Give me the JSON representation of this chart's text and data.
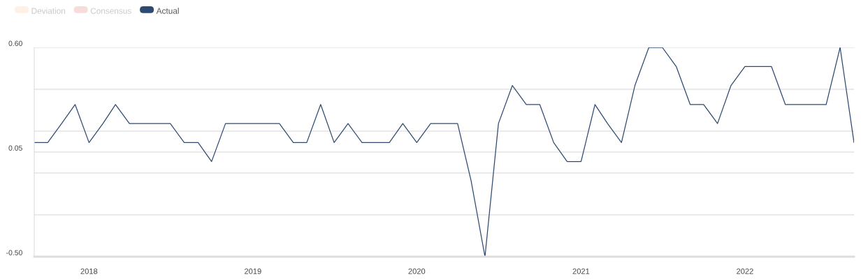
{
  "chart_data": {
    "type": "line",
    "x": [
      "2017-09",
      "2017-10",
      "2017-11",
      "2017-12",
      "2018-01",
      "2018-02",
      "2018-03",
      "2018-04",
      "2018-05",
      "2018-06",
      "2018-07",
      "2018-08",
      "2018-09",
      "2018-10",
      "2018-11",
      "2018-12",
      "2019-01",
      "2019-02",
      "2019-03",
      "2019-04",
      "2019-05",
      "2019-06",
      "2019-07",
      "2019-08",
      "2019-09",
      "2019-10",
      "2019-11",
      "2019-12",
      "2020-01",
      "2020-02",
      "2020-03",
      "2020-04",
      "2020-05",
      "2020-06",
      "2020-07",
      "2020-08",
      "2020-09",
      "2020-10",
      "2020-11",
      "2020-12",
      "2021-01",
      "2021-02",
      "2021-03",
      "2021-04",
      "2021-05",
      "2021-06",
      "2021-07",
      "2021-08",
      "2021-09",
      "2021-10",
      "2021-11",
      "2021-12",
      "2022-01",
      "2022-02",
      "2022-03",
      "2022-04",
      "2022-05",
      "2022-06",
      "2022-07",
      "2022-08",
      "2022-09"
    ],
    "series": [
      {
        "name": "Deviation",
        "color": "#fdf1e7",
        "values": [
          null,
          null,
          null,
          null,
          null,
          null,
          null,
          null,
          null,
          null,
          null,
          null,
          null,
          null,
          null,
          null,
          null,
          null,
          null,
          null,
          null,
          null,
          null,
          null,
          null,
          null,
          null,
          null,
          null,
          null,
          null,
          null,
          null,
          null,
          null,
          null,
          null,
          null,
          null,
          null,
          null,
          null,
          null,
          null,
          null,
          null,
          null,
          null,
          null,
          null,
          null,
          null,
          null,
          null,
          null,
          null,
          null,
          null,
          null,
          null,
          null
        ]
      },
      {
        "name": "Consensus",
        "color": "#f8dcdc",
        "values": [
          null,
          null,
          null,
          null,
          null,
          null,
          null,
          null,
          null,
          null,
          null,
          null,
          null,
          null,
          null,
          null,
          null,
          null,
          null,
          null,
          null,
          null,
          null,
          null,
          null,
          null,
          null,
          null,
          null,
          null,
          null,
          null,
          null,
          null,
          null,
          null,
          null,
          null,
          null,
          null,
          null,
          null,
          null,
          null,
          null,
          null,
          null,
          null,
          null,
          null,
          null,
          null,
          null,
          null,
          null,
          null,
          null,
          null,
          null,
          null,
          null
        ]
      },
      {
        "name": "Actual",
        "color": "#2e4a72",
        "values": [
          0.1,
          0.1,
          0.2,
          0.3,
          0.1,
          0.2,
          0.3,
          0.2,
          0.2,
          0.2,
          0.2,
          0.1,
          0.1,
          0.0,
          0.2,
          0.2,
          0.2,
          0.2,
          0.2,
          0.1,
          0.1,
          0.3,
          0.1,
          0.2,
          0.1,
          0.1,
          0.1,
          0.2,
          0.1,
          0.2,
          0.2,
          0.2,
          -0.1,
          -0.5,
          0.2,
          0.4,
          0.3,
          0.3,
          0.1,
          0.0,
          0.0,
          0.3,
          0.2,
          0.1,
          0.4,
          0.6,
          0.6,
          0.5,
          0.3,
          0.3,
          0.2,
          0.4,
          0.5,
          0.5,
          0.5,
          0.3,
          0.3,
          0.3,
          0.3,
          0.6,
          0.1
        ]
      }
    ],
    "xlim": [
      "2017-09",
      "2022-09"
    ],
    "xticks": [
      {
        "value": "2018-01",
        "label": "2018"
      },
      {
        "value": "2019-01",
        "label": "2019"
      },
      {
        "value": "2020-01",
        "label": "2020"
      },
      {
        "value": "2021-01",
        "label": "2021"
      },
      {
        "value": "2022-01",
        "label": "2022"
      }
    ],
    "ylim": [
      -0.5,
      0.6
    ],
    "yticks": [
      {
        "value": 0.6,
        "label": "0.60"
      },
      {
        "value": 0.38,
        "label": null
      },
      {
        "value": 0.16,
        "label": null
      },
      {
        "value": 0.05,
        "label": "0.05"
      },
      {
        "value": -0.06,
        "label": null
      },
      {
        "value": -0.28,
        "label": null
      },
      {
        "value": -0.5,
        "label": "-0.50"
      }
    ],
    "grid": "y",
    "legend": "top left",
    "marker": "none",
    "line_style": "solid"
  }
}
